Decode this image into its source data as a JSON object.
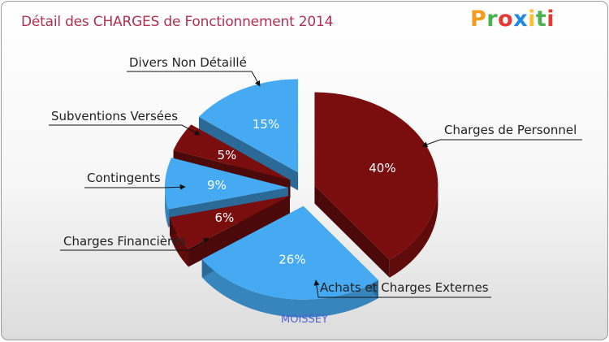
{
  "header": {
    "title": "Détail des CHARGES de Fonctionnement 2014",
    "logo_letters": [
      "P",
      "r",
      "o",
      "x",
      "i",
      "t",
      "i"
    ],
    "logo_colors": [
      "#f29b1d",
      "#4caf50",
      "#e53935",
      "#1e88e5",
      "#fbc02d",
      "#4caf50",
      "#e53935"
    ]
  },
  "footer": {
    "town": "MOISSEY"
  },
  "chart_data": {
    "type": "pie",
    "title": "Détail des CHARGES de Fonctionnement 2014",
    "subtitle": "MOISSEY",
    "legend": "labels with leader arrows around the pie",
    "categories": [
      "Charges de Personnel",
      "Achats et Charges Externes",
      "Charges Financières",
      "Contingents",
      "Subventions Versées",
      "Divers Non Détaillé"
    ],
    "values": [
      40,
      26,
      6,
      9,
      5,
      15
    ],
    "value_labels": [
      "40%",
      "26%",
      "6%",
      "9%",
      "5%",
      "15%"
    ],
    "colors": [
      "#7a0e0e",
      "#45aaf2",
      "#7a0e0e",
      "#45aaf2",
      "#7a0e0e",
      "#45aaf2"
    ]
  }
}
